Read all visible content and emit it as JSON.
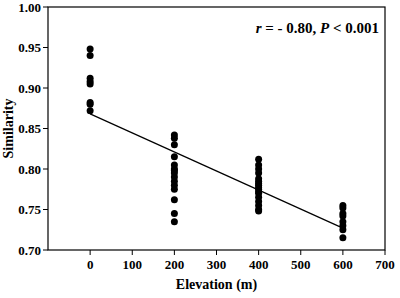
{
  "chart_data": {
    "type": "scatter",
    "x_label": "Elevation (m)",
    "y_label": "Similarity",
    "annotation": "r = - 0.80, P < 0.001",
    "xlim": [
      -100,
      700
    ],
    "xticks": [
      0,
      100,
      200,
      300,
      400,
      500,
      600,
      700
    ],
    "ylim": [
      0.7,
      1.0
    ],
    "yticks": [
      {
        "value": 0.7,
        "label": "0.70"
      },
      0.75,
      {
        "value": 0.8,
        "label": "0.80"
      },
      0.85,
      {
        "value": 0.9,
        "label": "0.90"
      },
      0.95,
      {
        "value": 1.0,
        "label": "1.00"
      }
    ],
    "grid": false,
    "series": [
      {
        "type": "scatter",
        "marker": "circle",
        "color": "#000000",
        "x": [
          0,
          0,
          0,
          0,
          0,
          0,
          0,
          0,
          200,
          200,
          200,
          200,
          200,
          200,
          200,
          200,
          200,
          200,
          200,
          200,
          200,
          200,
          200,
          400,
          400,
          400,
          400,
          400,
          400,
          400,
          400,
          400,
          400,
          400,
          400,
          400,
          400,
          400,
          400,
          400,
          600,
          600,
          600,
          600,
          600,
          600,
          600,
          600
        ],
        "values": [
          0.948,
          0.94,
          0.912,
          0.908,
          0.905,
          0.882,
          0.88,
          0.872,
          0.842,
          0.838,
          0.83,
          0.815,
          0.805,
          0.8,
          0.798,
          0.795,
          0.79,
          0.785,
          0.78,
          0.775,
          0.762,
          0.745,
          0.735,
          0.812,
          0.805,
          0.8,
          0.795,
          0.788,
          0.785,
          0.782,
          0.78,
          0.777,
          0.775,
          0.772,
          0.77,
          0.765,
          0.76,
          0.755,
          0.75,
          0.748,
          0.755,
          0.752,
          0.745,
          0.742,
          0.735,
          0.73,
          0.725,
          0.715
        ]
      },
      {
        "type": "line",
        "line_style": "solid",
        "color": "#000000",
        "x": [
          0,
          600
        ],
        "values": [
          0.868,
          0.727
        ]
      }
    ]
  }
}
